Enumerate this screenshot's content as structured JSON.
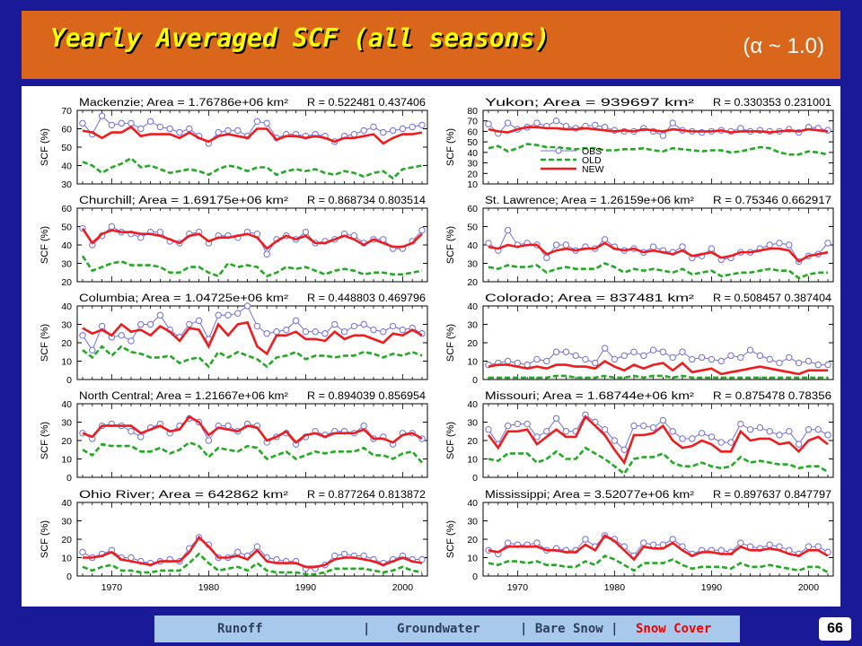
{
  "slide": {
    "title": "Yearly Averaged SCF (all seasons)",
    "subtitle": "(α ~ 1.0)",
    "page_number": "66"
  },
  "nav": {
    "items": [
      {
        "label": "Runoff",
        "active": false
      },
      {
        "label": "|",
        "active": false
      },
      {
        "label": "Groundwater",
        "active": false
      },
      {
        "label": "| Bare Snow |",
        "active": false
      },
      {
        "label": "Snow Cover",
        "active": true
      }
    ]
  },
  "colors": {
    "obs": "#7070dd",
    "old": "#22aa22",
    "new": "#ee1c1c"
  },
  "chart_data": {
    "type": "line",
    "ylabel": "SCF (%)",
    "x_ticks": [
      "1970",
      "1980",
      "1990",
      "2000"
    ],
    "legend": [
      "OBS",
      "OLD",
      "NEW"
    ],
    "years": [
      1967,
      1968,
      1969,
      1970,
      1971,
      1972,
      1973,
      1974,
      1975,
      1976,
      1977,
      1978,
      1979,
      1980,
      1981,
      1982,
      1983,
      1984,
      1985,
      1986,
      1987,
      1988,
      1989,
      1990,
      1991,
      1992,
      1993,
      1994,
      1995,
      1996,
      1997,
      1998,
      1999,
      2000,
      2001,
      2002
    ],
    "panels": [
      {
        "region": "Mackenzie; Area = 1.76786e+06 km²",
        "r": "R = 0.522481 0.437406",
        "ylim": [
          30,
          70
        ],
        "yticks": [
          "30",
          "40",
          "50",
          "60",
          "70"
        ],
        "obs": [
          63,
          57,
          67,
          62,
          63,
          63,
          60,
          64,
          61,
          60,
          58,
          60,
          56,
          52,
          58,
          59,
          59,
          56,
          64,
          63,
          55,
          57,
          57,
          56,
          57,
          56,
          53,
          56,
          57,
          59,
          61,
          58,
          59,
          60,
          61,
          62
        ],
        "new": [
          59,
          58,
          55,
          58,
          58,
          61,
          56,
          57,
          57,
          57,
          55,
          58,
          55,
          53,
          56,
          57,
          56,
          55,
          60,
          60,
          54,
          56,
          56,
          55,
          56,
          55,
          53,
          55,
          55,
          56,
          57,
          52,
          55,
          57,
          57,
          58
        ],
        "old": [
          42,
          40,
          36,
          39,
          41,
          44,
          39,
          40,
          38,
          36,
          37,
          38,
          37,
          35,
          38,
          40,
          39,
          37,
          39,
          39,
          35,
          37,
          38,
          37,
          38,
          36,
          35,
          37,
          36,
          34,
          36,
          37,
          33,
          38,
          39,
          40
        ]
      },
      {
        "region": "Yukon; Area = 939697 km²",
        "r": "R = 0.330353 0.231001",
        "ylim": [
          10,
          80
        ],
        "yticks": [
          "10",
          "20",
          "30",
          "40",
          "50",
          "60",
          "70",
          "80"
        ],
        "obs": [
          67,
          58,
          68,
          62,
          64,
          68,
          65,
          70,
          65,
          63,
          65,
          66,
          64,
          61,
          60,
          60,
          63,
          60,
          56,
          68,
          61,
          60,
          59,
          60,
          61,
          60,
          63,
          60,
          61,
          60,
          60,
          62,
          59,
          64,
          63,
          61
        ],
        "new": [
          62,
          60,
          59,
          62,
          64,
          64,
          63,
          63,
          62,
          62,
          63,
          62,
          61,
          60,
          61,
          60,
          62,
          61,
          60,
          62,
          61,
          60,
          60,
          60,
          61,
          59,
          60,
          60,
          60,
          59,
          60,
          61,
          60,
          62,
          61,
          60
        ],
        "old": [
          44,
          46,
          41,
          44,
          48,
          47,
          45,
          45,
          44,
          43,
          44,
          44,
          42,
          42,
          43,
          43,
          44,
          42,
          41,
          44,
          43,
          42,
          41,
          42,
          42,
          40,
          41,
          43,
          45,
          44,
          40,
          38,
          38,
          41,
          40,
          38
        ],
        "show_legend": true
      },
      {
        "region": "Churchill; Area = 1.69175e+06 km²",
        "r": "R = 0.868734 0.803514",
        "ylim": [
          20,
          60
        ],
        "yticks": [
          "20",
          "30",
          "40",
          "50",
          "60"
        ],
        "obs": [
          49,
          40,
          45,
          50,
          47,
          46,
          44,
          47,
          47,
          42,
          41,
          46,
          47,
          41,
          45,
          45,
          44,
          47,
          46,
          35,
          43,
          45,
          43,
          47,
          41,
          42,
          43,
          46,
          45,
          41,
          43,
          43,
          38,
          38,
          42,
          48
        ],
        "new": [
          49,
          41,
          46,
          48,
          47,
          47,
          46,
          46,
          45,
          43,
          41,
          45,
          46,
          42,
          44,
          44,
          45,
          46,
          44,
          38,
          42,
          45,
          43,
          45,
          41,
          41,
          43,
          45,
          43,
          40,
          43,
          41,
          39,
          39,
          41,
          46
        ],
        "old": [
          34,
          26,
          28,
          30,
          31,
          29,
          29,
          29,
          28,
          25,
          25,
          28,
          28,
          25,
          23,
          30,
          28,
          29,
          28,
          23,
          25,
          28,
          27,
          28,
          26,
          24,
          26,
          27,
          26,
          24,
          25,
          25,
          24,
          24,
          25,
          26
        ]
      },
      {
        "region": "St. Lawrence; Area = 1.26159e+06 km²",
        "r": "R = 0.75346 0.662917",
        "ylim": [
          20,
          60
        ],
        "yticks": [
          "20",
          "30",
          "40",
          "50",
          "60"
        ],
        "obs": [
          41,
          37,
          48,
          40,
          41,
          40,
          33,
          40,
          40,
          37,
          39,
          38,
          43,
          39,
          37,
          38,
          36,
          39,
          37,
          36,
          39,
          33,
          34,
          38,
          32,
          33,
          36,
          36,
          38,
          40,
          41,
          40,
          31,
          34,
          35,
          41
        ],
        "new": [
          39,
          38,
          40,
          39,
          40,
          40,
          35,
          37,
          38,
          37,
          38,
          38,
          41,
          38,
          37,
          38,
          36,
          37,
          36,
          35,
          37,
          34,
          35,
          36,
          33,
          34,
          36,
          36,
          37,
          38,
          38,
          37,
          31,
          34,
          35,
          36
        ],
        "old": [
          28,
          27,
          29,
          28,
          28,
          29,
          25,
          27,
          28,
          27,
          27,
          27,
          30,
          28,
          25,
          27,
          26,
          27,
          26,
          25,
          27,
          24,
          25,
          26,
          23,
          24,
          25,
          25,
          26,
          27,
          26,
          26,
          22,
          24,
          25,
          25
        ]
      },
      {
        "region": "Columbia; Area = 1.04725e+06 km²",
        "r": "R = 0.448803 0.469796",
        "ylim": [
          0,
          40
        ],
        "yticks": [
          "0",
          "10",
          "20",
          "30",
          "40"
        ],
        "obs": [
          24,
          16,
          29,
          23,
          24,
          21,
          30,
          30,
          35,
          27,
          23,
          30,
          32,
          22,
          35,
          35,
          36,
          40,
          29,
          25,
          26,
          27,
          32,
          26,
          26,
          25,
          30,
          26,
          29,
          30,
          27,
          26,
          29,
          27,
          28,
          25
        ],
        "new": [
          28,
          25,
          27,
          24,
          30,
          26,
          27,
          24,
          29,
          26,
          21,
          28,
          27,
          18,
          30,
          24,
          30,
          31,
          18,
          14,
          24,
          24,
          26,
          22,
          22,
          21,
          26,
          22,
          24,
          24,
          22,
          20,
          25,
          24,
          27,
          24
        ],
        "old": [
          16,
          12,
          18,
          13,
          18,
          15,
          14,
          12,
          12,
          13,
          9,
          11,
          12,
          7,
          15,
          12,
          15,
          13,
          11,
          7,
          12,
          13,
          15,
          11,
          13,
          13,
          12,
          13,
          13,
          15,
          14,
          12,
          14,
          13,
          15,
          13
        ]
      },
      {
        "region": "Colorado; Area = 837481 km²",
        "r": "R = 0.508457 0.387404",
        "ylim": [
          0,
          40
        ],
        "yticks": [
          "0",
          "10",
          "20",
          "30",
          "40"
        ],
        "obs": [
          8,
          9,
          10,
          9,
          8,
          11,
          10,
          15,
          15,
          13,
          11,
          9,
          17,
          11,
          13,
          15,
          13,
          16,
          15,
          12,
          15,
          11,
          12,
          11,
          10,
          13,
          12,
          16,
          13,
          11,
          9,
          12,
          9,
          10,
          8,
          8
        ],
        "new": [
          7,
          8,
          8,
          7,
          6,
          7,
          6,
          8,
          8,
          7,
          7,
          6,
          10,
          7,
          5,
          8,
          6,
          8,
          9,
          5,
          9,
          4,
          5,
          6,
          3,
          4,
          5,
          6,
          7,
          6,
          5,
          4,
          3,
          5,
          5,
          5
        ],
        "old": [
          1,
          1,
          1,
          1,
          1,
          1,
          1,
          2,
          2,
          1,
          1,
          1,
          2,
          1,
          1,
          2,
          1,
          2,
          2,
          1,
          2,
          1,
          1,
          1,
          1,
          1,
          1,
          1,
          1,
          1,
          1,
          1,
          1,
          1,
          1,
          1
        ]
      },
      {
        "region": "North Central; Area = 1.21667e+06 km²",
        "r": "R = 0.894039 0.856954",
        "ylim": [
          0,
          40
        ],
        "yticks": [
          "0",
          "10",
          "20",
          "30",
          "40"
        ],
        "obs": [
          24,
          21,
          28,
          29,
          28,
          25,
          22,
          27,
          29,
          24,
          28,
          32,
          30,
          20,
          28,
          28,
          25,
          29,
          28,
          19,
          22,
          24,
          18,
          22,
          25,
          23,
          25,
          25,
          24,
          28,
          21,
          22,
          18,
          24,
          24,
          21
        ],
        "new": [
          24,
          22,
          28,
          28,
          28,
          28,
          24,
          26,
          28,
          25,
          26,
          33,
          30,
          23,
          27,
          26,
          25,
          28,
          27,
          20,
          22,
          25,
          19,
          23,
          24,
          22,
          24,
          24,
          24,
          26,
          21,
          21,
          19,
          23,
          24,
          21
        ],
        "old": [
          15,
          12,
          18,
          17,
          17,
          17,
          14,
          14,
          16,
          13,
          15,
          19,
          17,
          11,
          16,
          15,
          14,
          17,
          16,
          10,
          12,
          14,
          10,
          12,
          14,
          13,
          14,
          14,
          14,
          16,
          12,
          12,
          10,
          13,
          14,
          8
        ]
      },
      {
        "region": "Missouri; Area = 1.68744e+06 km²",
        "r": "R = 0.875478 0.78356",
        "ylim": [
          0,
          40
        ],
        "yticks": [
          "0",
          "10",
          "20",
          "30",
          "40"
        ],
        "obs": [
          26,
          18,
          28,
          29,
          29,
          22,
          25,
          32,
          25,
          25,
          34,
          30,
          26,
          20,
          15,
          28,
          28,
          27,
          31,
          25,
          21,
          21,
          24,
          22,
          19,
          19,
          29,
          26,
          27,
          25,
          23,
          25,
          18,
          26,
          26,
          23
        ],
        "new": [
          23,
          16,
          25,
          25,
          26,
          18,
          22,
          26,
          22,
          22,
          33,
          28,
          23,
          15,
          8,
          23,
          23,
          24,
          28,
          20,
          16,
          17,
          20,
          18,
          14,
          14,
          25,
          20,
          21,
          21,
          18,
          19,
          14,
          20,
          22,
          18
        ],
        "old": [
          10,
          9,
          13,
          13,
          13,
          8,
          10,
          14,
          10,
          10,
          16,
          13,
          10,
          6,
          2,
          10,
          11,
          11,
          13,
          8,
          6,
          6,
          8,
          6,
          5,
          6,
          11,
          8,
          9,
          8,
          7,
          7,
          5,
          6,
          6,
          3
        ]
      },
      {
        "region": "Ohio River; Area = 642862 km²",
        "r": "R = 0.877264 0.813872",
        "ylim": [
          0,
          40
        ],
        "yticks": [
          "0",
          "10",
          "20",
          "30",
          "40"
        ],
        "obs": [
          13,
          10,
          12,
          14,
          10,
          10,
          8,
          7,
          8,
          9,
          8,
          15,
          21,
          17,
          10,
          10,
          13,
          11,
          16,
          10,
          9,
          8,
          8,
          4,
          4,
          6,
          11,
          12,
          11,
          11,
          9,
          7,
          9,
          11,
          9,
          9
        ],
        "new": [
          10,
          10,
          11,
          13,
          9,
          8,
          7,
          6,
          8,
          8,
          8,
          13,
          21,
          16,
          10,
          10,
          11,
          9,
          14,
          8,
          7,
          7,
          7,
          5,
          5,
          6,
          9,
          10,
          10,
          9,
          8,
          6,
          8,
          10,
          8,
          7
        ],
        "old": [
          5,
          3,
          5,
          6,
          3,
          3,
          2,
          2,
          3,
          3,
          3,
          7,
          12,
          7,
          3,
          4,
          5,
          3,
          7,
          3,
          2,
          2,
          2,
          1,
          1,
          2,
          4,
          4,
          4,
          4,
          3,
          2,
          3,
          5,
          3,
          2
        ]
      },
      {
        "region": "Mississippi; Area = 3.52077e+06 km²",
        "r": "R = 0.897637 0.847797",
        "ylim": [
          0,
          40
        ],
        "yticks": [
          "0",
          "10",
          "20",
          "30",
          "40"
        ],
        "obs": [
          14,
          12,
          18,
          17,
          17,
          18,
          14,
          15,
          14,
          14,
          20,
          16,
          22,
          20,
          16,
          11,
          18,
          17,
          17,
          20,
          16,
          12,
          14,
          14,
          14,
          13,
          18,
          16,
          15,
          17,
          16,
          14,
          12,
          16,
          16,
          13
        ],
        "new": [
          14,
          13,
          16,
          16,
          16,
          16,
          14,
          14,
          13,
          13,
          17,
          14,
          22,
          19,
          14,
          9,
          16,
          15,
          15,
          18,
          14,
          11,
          13,
          13,
          12,
          12,
          16,
          14,
          14,
          15,
          14,
          12,
          11,
          14,
          14,
          11
        ],
        "old": [
          7,
          6,
          8,
          8,
          7,
          8,
          6,
          6,
          5,
          5,
          8,
          6,
          11,
          9,
          6,
          3,
          7,
          7,
          7,
          9,
          6,
          4,
          5,
          5,
          5,
          4,
          7,
          5,
          5,
          6,
          5,
          4,
          3,
          5,
          5,
          2
        ]
      }
    ]
  }
}
